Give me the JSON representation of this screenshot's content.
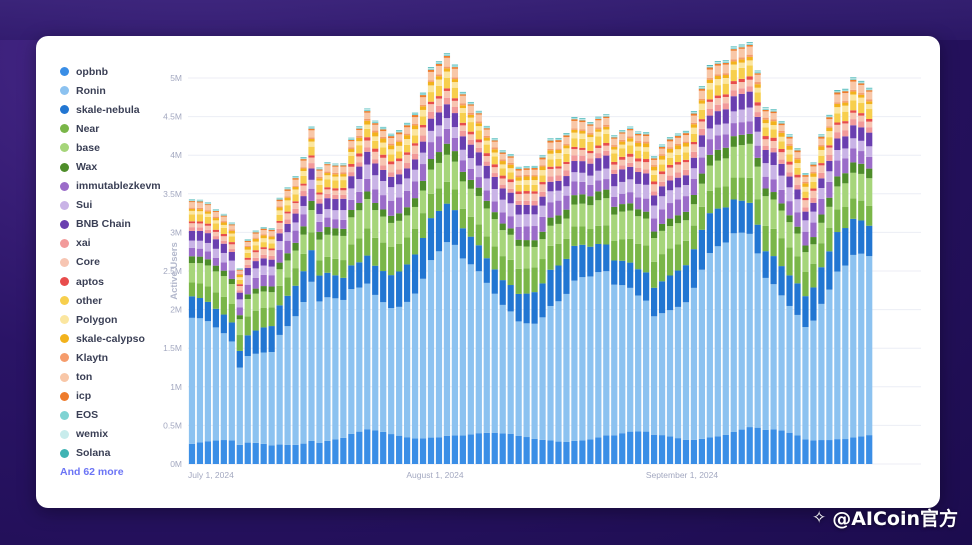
{
  "watermark": {
    "text": "@AICoin官方",
    "icon": "aicoin-logo-icon"
  },
  "chart_data": {
    "type": "bar",
    "stacked": true,
    "ylabel": "Active Users",
    "y_ticks": [
      "0M",
      "0.5M",
      "1M",
      "1.5M",
      "2M",
      "2.5M",
      "3M",
      "3.5M",
      "4M",
      "4.5M",
      "5M"
    ],
    "ylim": [
      0,
      5000000
    ],
    "x_ticks": [
      {
        "label": "July 1, 2024",
        "date": "2024-07-01"
      },
      {
        "label": "August 1, 2024",
        "date": "2024-08-01"
      },
      {
        "label": "September 1, 2024",
        "date": "2024-09-01"
      }
    ],
    "x_start": "2024-07-01",
    "x_end": "2024-09-30",
    "legend_more": "And 62 more",
    "grid": true,
    "legend_position": "left",
    "series": [
      {
        "name": "opbnb",
        "color": "#3a8ee6"
      },
      {
        "name": "Ronin",
        "color": "#8cc2f0"
      },
      {
        "name": "skale-nebula",
        "color": "#2276d2"
      },
      {
        "name": "Near",
        "color": "#7ab648"
      },
      {
        "name": "base",
        "color": "#a6d57a"
      },
      {
        "name": "Wax",
        "color": "#4e8d2a"
      },
      {
        "name": "immutablezkevm",
        "color": "#9b6cc9"
      },
      {
        "name": "Sui",
        "color": "#c9b3e6"
      },
      {
        "name": "BNB Chain",
        "color": "#6a3fb0"
      },
      {
        "name": "xai",
        "color": "#f29a9a"
      },
      {
        "name": "Core",
        "color": "#f7c5b2"
      },
      {
        "name": "aptos",
        "color": "#e84c4c"
      },
      {
        "name": "other",
        "color": "#f7cf4d"
      },
      {
        "name": "Polygon",
        "color": "#fbe6a0"
      },
      {
        "name": "skale-calypso",
        "color": "#f2b21c"
      },
      {
        "name": "Klaytn",
        "color": "#f59c6c"
      },
      {
        "name": "ton",
        "color": "#f8c7a8"
      },
      {
        "name": "icp",
        "color": "#ee7b2c"
      },
      {
        "name": "EOS",
        "color": "#7fd3d3"
      },
      {
        "name": "wemix",
        "color": "#c8ecec"
      },
      {
        "name": "Solana",
        "color": "#3fb3b3"
      }
    ],
    "totals": [
      3200000,
      3210000,
      3220000,
      3200000,
      3220000,
      3190000,
      2650000,
      3100000,
      3250000,
      3300000,
      3250000,
      3600000,
      3650000,
      3700000,
      3850000,
      4150000,
      3600000,
      3650000,
      3650000,
      3700000,
      4100000,
      4350000,
      4700000,
      4650000,
      4650000,
      4600000,
      4650000,
      4700000,
      4750000,
      4900000,
      5100000,
      5050000,
      5050000,
      4850000,
      4500000,
      4400000,
      4350000,
      4250000,
      4200000,
      4150000,
      4200000,
      4100000,
      4150000,
      4150000,
      4250000,
      4400000,
      4300000,
      4250000,
      4350000,
      4250000,
      4150000,
      4200000,
      4250000,
      4050000,
      4200000,
      4350000,
      4400000,
      4500000,
      4250000,
      4450000,
      4550000,
      4550000,
      4500000,
      4650000,
      4850000,
      5000000,
      4950000,
      4900000,
      5050000,
      5100000,
      5200000,
      4950000,
      4600000,
      4700000,
      4650000,
      4550000,
      4400000,
      4050000,
      4150000,
      4450000,
      4600000,
      4800000,
      4700000,
      4750000,
      4650000,
      4550000
    ],
    "shares": [
      0.085,
      0.45,
      0.095,
      0.07,
      0.075,
      0.025,
      0.04,
      0.035,
      0.035,
      0.015,
      0.02,
      0.008,
      0.025,
      0.015,
      0.01,
      0.005,
      0.02,
      0.005,
      0.003,
      0.002,
      0.002
    ]
  }
}
